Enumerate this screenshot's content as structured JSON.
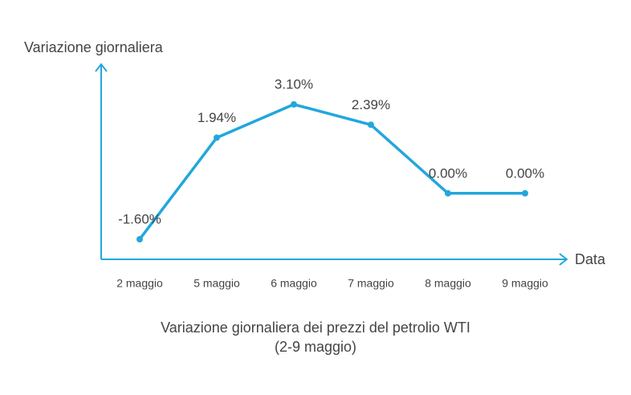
{
  "chart_data": {
    "type": "line",
    "title": "Variazione giornaliera dei prezzi del petrolio WTI (2-9 maggio)",
    "y_label": "Variazione giornaliera",
    "x_label": "Data",
    "categories": [
      "2 maggio",
      "5 maggio",
      "6 maggio",
      "7 maggio",
      "8 maggio",
      "9 maggio"
    ],
    "values": [
      -1.6,
      1.94,
      3.1,
      2.39,
      0,
      0
    ],
    "value_labels": [
      "-1.60%",
      "1.94%",
      "3.10%",
      "2.39%",
      "0.00%",
      "0.00%"
    ],
    "color": "#22a7dc",
    "ylim": [
      -2.3,
      4.5
    ]
  }
}
